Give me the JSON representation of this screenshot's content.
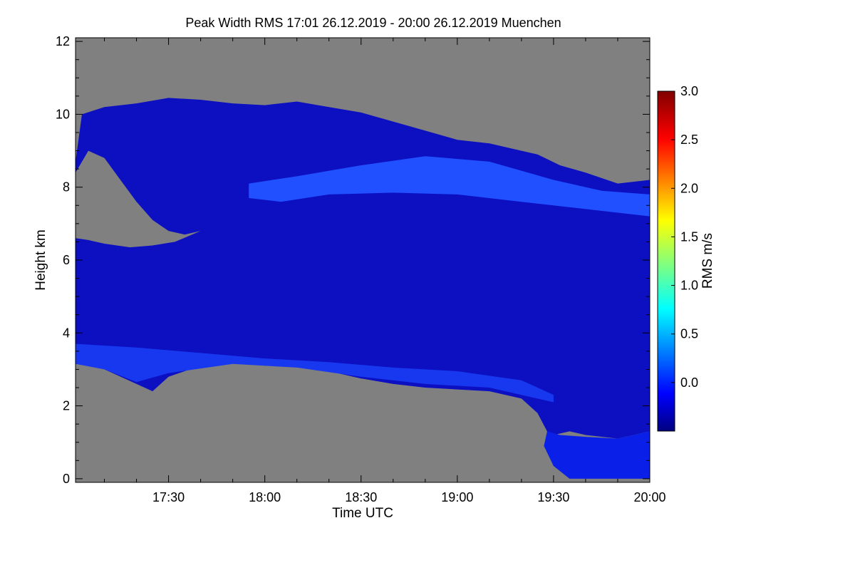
{
  "chart_data": {
    "type": "heatmap",
    "title": "Peak Width RMS   17:01 26.12.2019 - 20:00 26.12.2019 Muenchen",
    "xlabel": "Time UTC",
    "ylabel": "Height km",
    "colorbar_label": "RMS m/s",
    "x_ticks": [
      {
        "label": "17:30",
        "minutes": 1050
      },
      {
        "label": "18:00",
        "minutes": 1080
      },
      {
        "label": "18:30",
        "minutes": 1110
      },
      {
        "label": "19:00",
        "minutes": 1140
      },
      {
        "label": "19:30",
        "minutes": 1170
      },
      {
        "label": "20:00",
        "minutes": 1200
      }
    ],
    "xlim_minutes": [
      1021,
      1200
    ],
    "y_ticks": [
      0,
      2,
      4,
      6,
      8,
      10,
      12
    ],
    "ylim": [
      -0.1,
      12.1
    ],
    "colorbar_ticks": [
      "0.0",
      "0.5",
      "1.0",
      "1.5",
      "2.0",
      "2.5",
      "3.0"
    ],
    "colorbar_range": [
      -0.5,
      3.0
    ],
    "no_data_color": "#808080",
    "colormap": [
      "#000080",
      "#0000ff",
      "#00ffff",
      "#ffff00",
      "#ff0000",
      "#800000"
    ],
    "regions": [
      {
        "name": "main-cloud",
        "rms": 0.2,
        "color": "#0c10c0",
        "top_km": [
          [
            1021,
            8.7
          ],
          [
            1023,
            10.0
          ],
          [
            1030,
            10.2
          ],
          [
            1040,
            10.3
          ],
          [
            1050,
            10.45
          ],
          [
            1060,
            10.4
          ],
          [
            1070,
            10.3
          ],
          [
            1080,
            10.25
          ],
          [
            1090,
            10.35
          ],
          [
            1100,
            10.2
          ],
          [
            1110,
            10.05
          ],
          [
            1120,
            9.8
          ],
          [
            1130,
            9.55
          ],
          [
            1140,
            9.3
          ],
          [
            1150,
            9.2
          ],
          [
            1160,
            9.0
          ],
          [
            1165,
            8.9
          ],
          [
            1172,
            8.6
          ],
          [
            1180,
            8.4
          ],
          [
            1190,
            8.1
          ],
          [
            1200,
            8.2
          ]
        ],
        "bottom_km": [
          [
            1021,
            3.2
          ],
          [
            1030,
            3.0
          ],
          [
            1040,
            2.6
          ],
          [
            1045,
            2.4
          ],
          [
            1050,
            2.8
          ],
          [
            1060,
            3.1
          ],
          [
            1070,
            3.2
          ],
          [
            1080,
            3.1
          ],
          [
            1090,
            3.1
          ],
          [
            1100,
            2.95
          ],
          [
            1110,
            2.75
          ],
          [
            1120,
            2.6
          ],
          [
            1130,
            2.5
          ],
          [
            1140,
            2.45
          ],
          [
            1150,
            2.4
          ],
          [
            1160,
            2.2
          ],
          [
            1165,
            1.8
          ],
          [
            1168,
            1.3
          ],
          [
            1170,
            1.2
          ],
          [
            1175,
            1.3
          ],
          [
            1180,
            1.2
          ],
          [
            1190,
            1.1
          ],
          [
            1200,
            1.3
          ]
        ]
      },
      {
        "name": "clear-gap",
        "rms": null,
        "polygon_km": [
          [
            1021,
            8.4
          ],
          [
            1025,
            9.0
          ],
          [
            1030,
            8.8
          ],
          [
            1035,
            8.2
          ],
          [
            1040,
            7.6
          ],
          [
            1045,
            7.1
          ],
          [
            1050,
            6.8
          ],
          [
            1055,
            6.7
          ],
          [
            1060,
            6.8
          ],
          [
            1052,
            6.5
          ],
          [
            1045,
            6.4
          ],
          [
            1038,
            6.35
          ],
          [
            1030,
            6.45
          ],
          [
            1025,
            6.55
          ],
          [
            1021,
            6.6
          ]
        ]
      },
      {
        "name": "low-layer",
        "rms": 0.3,
        "color": "#0a20e8",
        "polygon_km": [
          [
            1168,
            1.3
          ],
          [
            1172,
            1.2
          ],
          [
            1180,
            1.15
          ],
          [
            1190,
            1.1
          ],
          [
            1200,
            1.3
          ],
          [
            1200,
            0.0
          ],
          [
            1175,
            0.0
          ],
          [
            1170,
            0.35
          ],
          [
            1167,
            0.9
          ]
        ]
      },
      {
        "name": "enhanced-upper-band",
        "rms": 0.5,
        "color": "#2050ff",
        "polygon_km": [
          [
            1075,
            8.1
          ],
          [
            1090,
            8.3
          ],
          [
            1110,
            8.6
          ],
          [
            1130,
            8.85
          ],
          [
            1150,
            8.7
          ],
          [
            1170,
            8.2
          ],
          [
            1185,
            7.9
          ],
          [
            1200,
            7.8
          ],
          [
            1200,
            7.2
          ],
          [
            1180,
            7.4
          ],
          [
            1160,
            7.6
          ],
          [
            1140,
            7.8
          ],
          [
            1120,
            7.85
          ],
          [
            1100,
            7.8
          ],
          [
            1085,
            7.6
          ],
          [
            1075,
            7.7
          ]
        ]
      },
      {
        "name": "enhanced-lower-band",
        "rms": 0.45,
        "color": "#1838f0",
        "polygon_km": [
          [
            1021,
            3.7
          ],
          [
            1040,
            3.6
          ],
          [
            1060,
            3.45
          ],
          [
            1080,
            3.3
          ],
          [
            1100,
            3.2
          ],
          [
            1120,
            3.05
          ],
          [
            1140,
            2.95
          ],
          [
            1160,
            2.7
          ],
          [
            1170,
            2.3
          ],
          [
            1170,
            2.1
          ],
          [
            1150,
            2.5
          ],
          [
            1130,
            2.6
          ],
          [
            1110,
            2.8
          ],
          [
            1090,
            3.05
          ],
          [
            1070,
            3.15
          ],
          [
            1050,
            2.9
          ],
          [
            1040,
            2.65
          ],
          [
            1030,
            3.0
          ],
          [
            1021,
            3.15
          ]
        ]
      }
    ]
  }
}
